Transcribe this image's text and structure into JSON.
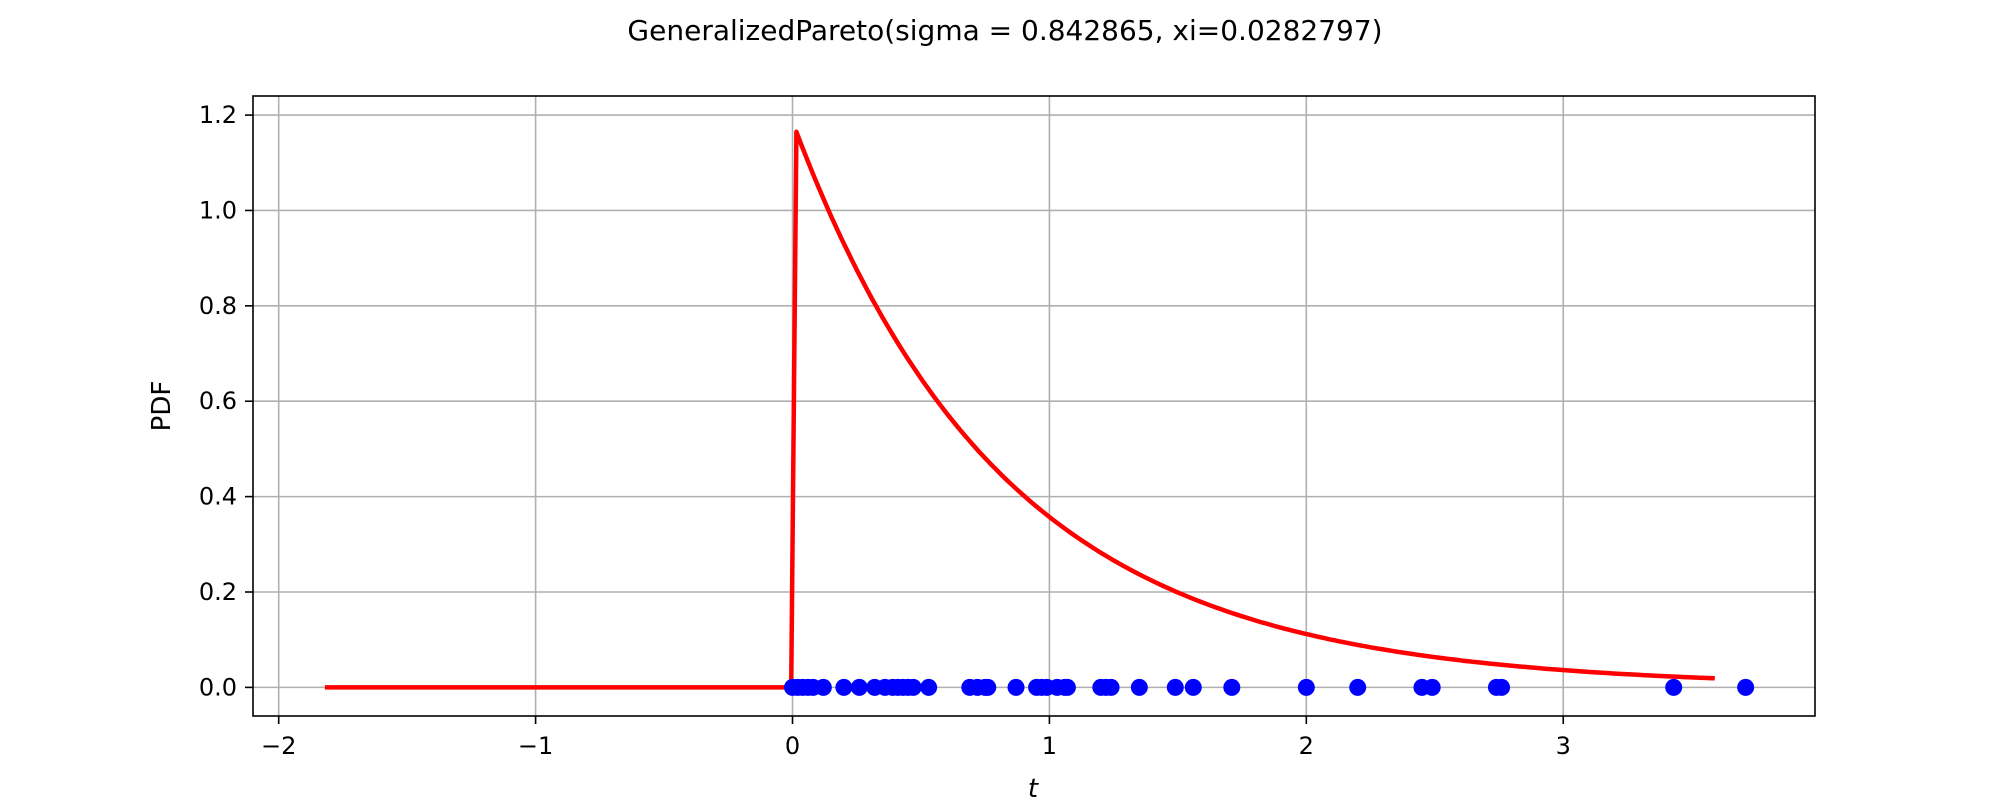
{
  "chart_data": {
    "type": "line",
    "title": "GeneralizedPareto(sigma = 0.842865, xi=0.0282797)",
    "xlabel": "t",
    "ylabel": "PDF",
    "xlim": [
      -2.1,
      3.98
    ],
    "ylim": [
      -0.06,
      1.24
    ],
    "xticks": [
      -2,
      -1,
      0,
      1,
      2,
      3
    ],
    "xtick_labels": [
      "−2",
      "−1",
      "0",
      "1",
      "2",
      "3"
    ],
    "yticks": [
      0.0,
      0.2,
      0.4,
      0.6,
      0.8,
      1.0,
      1.2
    ],
    "ytick_labels": [
      "0.0",
      "0.2",
      "0.4",
      "0.6",
      "0.8",
      "1.0",
      "1.2"
    ],
    "grid": true,
    "series": [
      {
        "kind": "line",
        "color": "#ff0000",
        "pdf": {
          "sigma": 0.842865,
          "xi": 0.0282797
        },
        "x_range": [
          -1.82,
          3.6
        ]
      },
      {
        "kind": "scatter",
        "color": "#0000ff",
        "x": [
          0.0,
          0.02,
          0.04,
          0.06,
          0.08,
          0.12,
          0.2,
          0.26,
          0.32,
          0.36,
          0.39,
          0.41,
          0.43,
          0.45,
          0.47,
          0.53,
          0.69,
          0.72,
          0.75,
          0.76,
          0.87,
          0.95,
          0.97,
          0.99,
          1.03,
          1.06,
          1.07,
          1.2,
          1.22,
          1.24,
          1.35,
          1.49,
          1.56,
          1.71,
          2.0,
          2.2,
          2.45,
          2.49,
          2.74,
          2.76,
          3.43,
          3.71
        ],
        "y_value": 0.0
      }
    ]
  }
}
